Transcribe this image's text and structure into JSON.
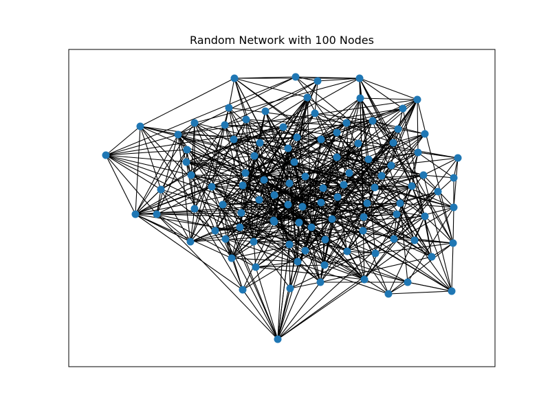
{
  "figure": {
    "title": "Random Network with 100 Nodes"
  },
  "colors": {
    "node": "#1f77b4",
    "edge": "#000000",
    "background": "#ffffff"
  }
}
